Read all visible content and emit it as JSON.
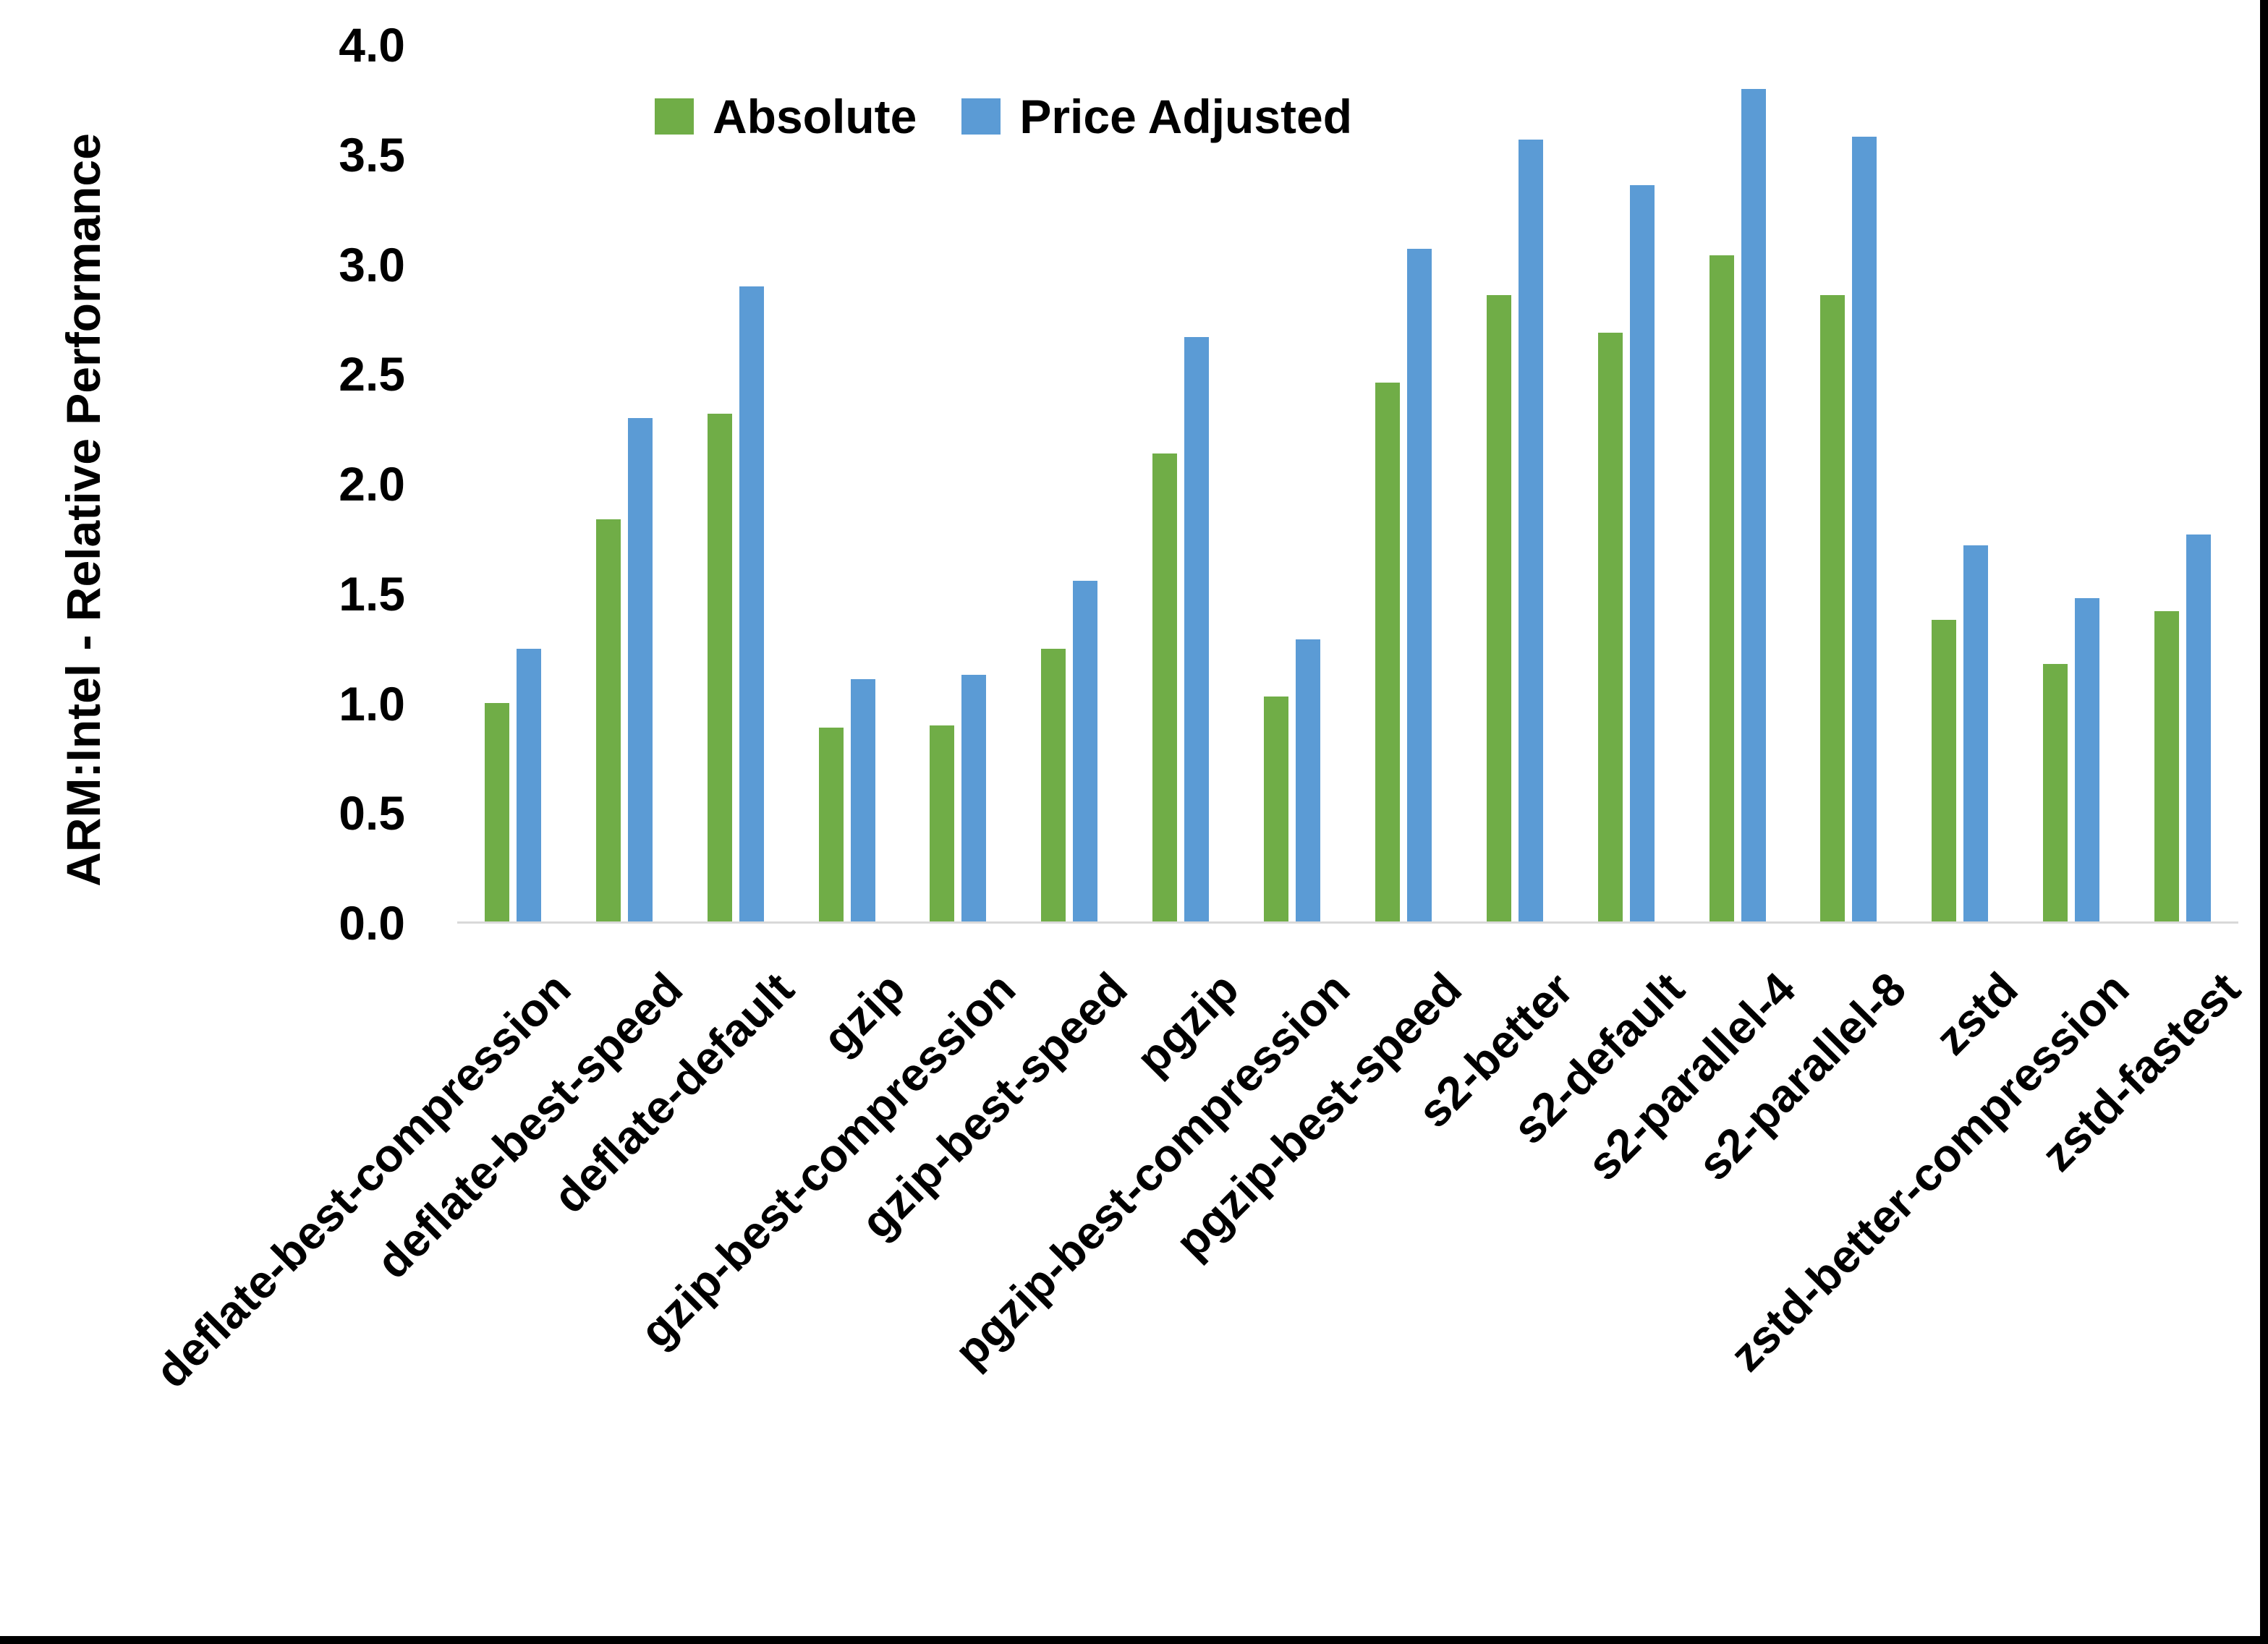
{
  "frame": {
    "border_color": "#000000",
    "background": "#ffffff"
  },
  "legend": {
    "items": [
      {
        "label": "Absolute",
        "color": "#70AD47"
      },
      {
        "label": "Price Adjusted",
        "color": "#5B9BD5"
      }
    ]
  },
  "chart_data": {
    "type": "bar",
    "title": "",
    "xlabel": "",
    "ylabel": "ARM:Intel - Relative Performance",
    "ylim": [
      0.0,
      4.0
    ],
    "ytick_step": 0.5,
    "ytick_labels": [
      "4.0",
      "3.5",
      "3.0",
      "2.5",
      "2.0",
      "1.5",
      "1.0",
      "0.5",
      "0.0"
    ],
    "grid": false,
    "legend_position": "top-center-inside",
    "axis_line_color": "#D9D9D9",
    "text_color": "#000000",
    "categories": [
      "deflate-best-compression",
      "deflate-best-speed",
      "deflate-default",
      "gzip",
      "gzip-best-compression",
      "gzip-best-speed",
      "pgzip",
      "pgzip-best-compression",
      "pgzip-best-speed",
      "s2-better",
      "s2-default",
      "s2-parallel-4",
      "s2-parallel-8",
      "zstd",
      "zstd-better-compression",
      "zstd-fastest"
    ],
    "series": [
      {
        "name": "Absolute",
        "color": "#70AD47",
        "values": [
          1.0,
          1.84,
          2.32,
          0.89,
          0.9,
          1.25,
          2.14,
          1.03,
          2.46,
          2.86,
          2.69,
          3.04,
          2.86,
          1.38,
          1.18,
          1.42
        ]
      },
      {
        "name": "Price Adjusted",
        "color": "#5B9BD5",
        "values": [
          1.25,
          2.3,
          2.9,
          1.11,
          1.13,
          1.56,
          2.67,
          1.29,
          3.07,
          3.57,
          3.36,
          3.8,
          3.58,
          1.72,
          1.48,
          1.77
        ]
      }
    ]
  }
}
